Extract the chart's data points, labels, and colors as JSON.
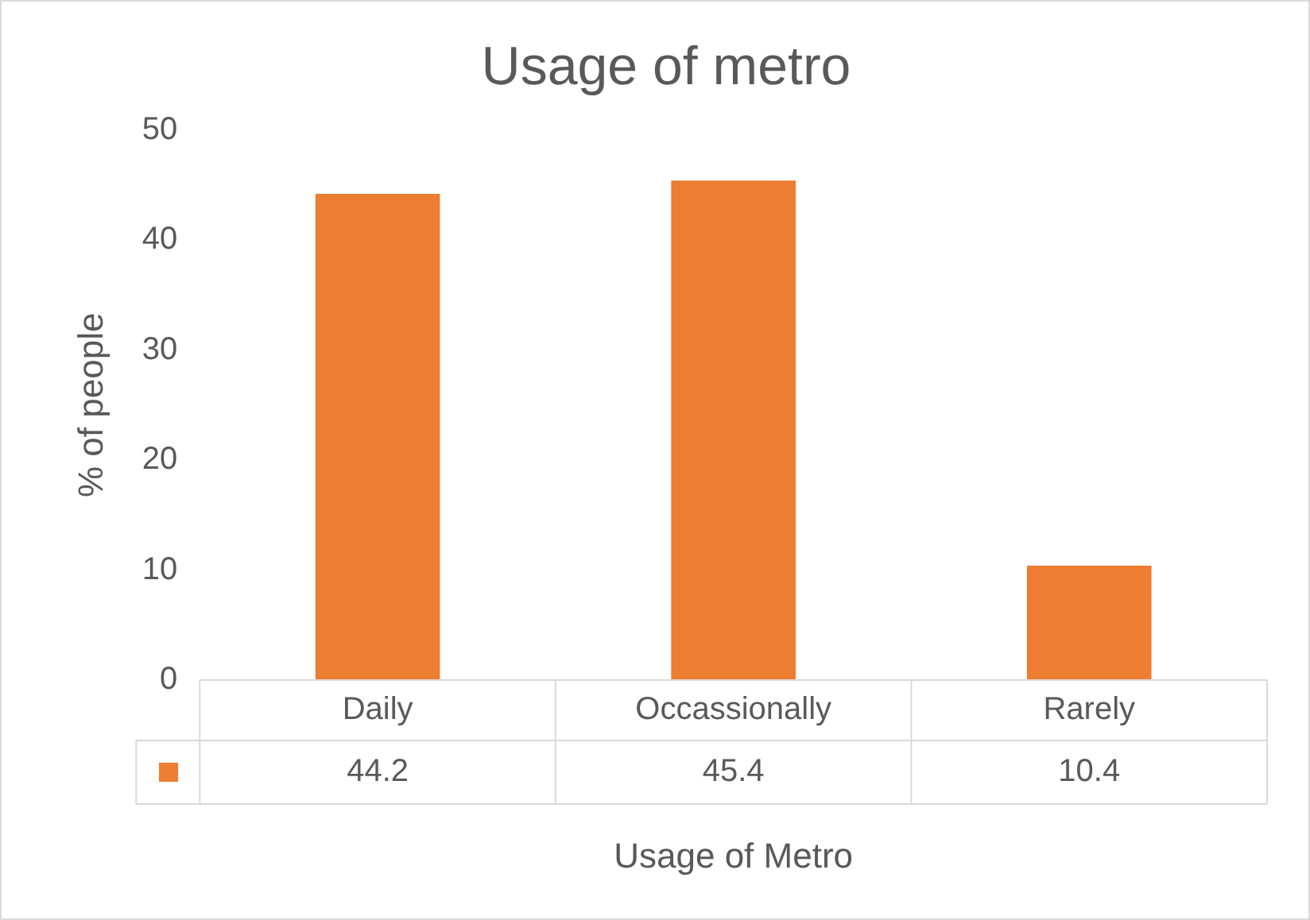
{
  "chart_data": {
    "type": "bar",
    "title": "Usage of metro",
    "xlabel": "Usage of Metro",
    "ylabel": "% of people",
    "categories": [
      "Daily",
      "Occassionally",
      "Rarely"
    ],
    "values": [
      44.2,
      45.4,
      10.4
    ],
    "color": "#ed7d31",
    "ylim": [
      0,
      50
    ],
    "yticks": [
      0,
      10,
      20,
      30,
      40,
      50
    ],
    "grid": false,
    "legend": false,
    "data_labels": true
  }
}
